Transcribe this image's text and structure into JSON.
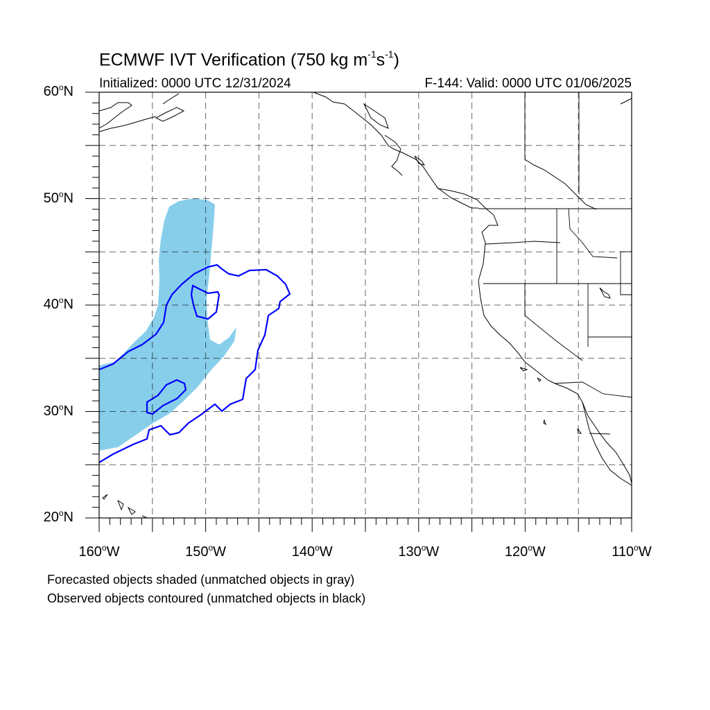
{
  "title": {
    "main": "ECMWF IVT Verification (750 kg m",
    "exp1": "-1",
    "mid": "s",
    "exp2": "-1",
    "end": ")"
  },
  "subtitle": {
    "initialized": "Initialized: 0000 UTC 12/31/2024",
    "valid": "F-144: Valid: 0000 UTC 01/06/2025"
  },
  "map": {
    "lon_range": [
      -160,
      -110
    ],
    "lat_range": [
      20,
      60
    ],
    "lat_ticks": [
      {
        "value": 60,
        "num": "60",
        "hemi": "N"
      },
      {
        "value": 50,
        "num": "50",
        "hemi": "N"
      },
      {
        "value": 40,
        "num": "40",
        "hemi": "N"
      },
      {
        "value": 30,
        "num": "30",
        "hemi": "N"
      },
      {
        "value": 20,
        "num": "20",
        "hemi": "N"
      }
    ],
    "lon_ticks": [
      {
        "value": -160,
        "num": "160",
        "hemi": "W"
      },
      {
        "value": -150,
        "num": "150",
        "hemi": "W"
      },
      {
        "value": -140,
        "num": "140",
        "hemi": "W"
      },
      {
        "value": -130,
        "num": "130",
        "hemi": "W"
      },
      {
        "value": -120,
        "num": "120",
        "hemi": "W"
      },
      {
        "value": -110,
        "num": "110",
        "hemi": "W"
      }
    ],
    "gridlines": "dashed every 5 degrees",
    "colors": {
      "forecast_fill": "#87ceeb",
      "observed_contour": "#0000ff",
      "coast": "#000000"
    }
  },
  "notes": {
    "line1": "Forecasted objects shaded (unmatched objects in gray)",
    "line2": "Observed objects contoured (unmatched objects in black)"
  }
}
